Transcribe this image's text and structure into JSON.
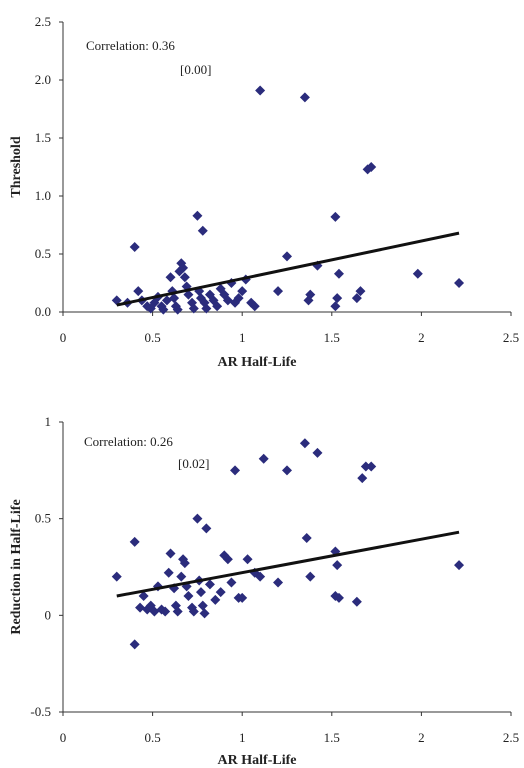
{
  "chart_data": [
    {
      "type": "scatter",
      "title": "",
      "xlabel": "AR Half-Life",
      "ylabel": "Threshold",
      "xlim": [
        0,
        2.5
      ],
      "ylim": [
        0,
        2.5
      ],
      "xticks": [
        "0",
        "0.5",
        "1",
        "1.5",
        "2",
        "2.5"
      ],
      "yticks": [
        "0.0",
        "0.5",
        "1.0",
        "1.5",
        "2.0",
        "2.5"
      ],
      "annotation": {
        "line1": "Correlation: 0.36",
        "line2": "[0.00]"
      },
      "points": [
        [
          0.3,
          0.1
        ],
        [
          0.36,
          0.08
        ],
        [
          0.4,
          0.56
        ],
        [
          0.42,
          0.18
        ],
        [
          0.44,
          0.1
        ],
        [
          0.47,
          0.05
        ],
        [
          0.49,
          0.03
        ],
        [
          0.51,
          0.08
        ],
        [
          0.53,
          0.13
        ],
        [
          0.55,
          0.05
        ],
        [
          0.56,
          0.02
        ],
        [
          0.58,
          0.1
        ],
        [
          0.6,
          0.3
        ],
        [
          0.61,
          0.18
        ],
        [
          0.62,
          0.12
        ],
        [
          0.63,
          0.05
        ],
        [
          0.64,
          0.02
        ],
        [
          0.65,
          0.35
        ],
        [
          0.66,
          0.42
        ],
        [
          0.67,
          0.38
        ],
        [
          0.68,
          0.3
        ],
        [
          0.69,
          0.22
        ],
        [
          0.7,
          0.15
        ],
        [
          0.72,
          0.08
        ],
        [
          0.73,
          0.03
        ],
        [
          0.75,
          0.83
        ],
        [
          0.76,
          0.18
        ],
        [
          0.77,
          0.12
        ],
        [
          0.78,
          0.7
        ],
        [
          0.79,
          0.08
        ],
        [
          0.8,
          0.03
        ],
        [
          0.82,
          0.15
        ],
        [
          0.84,
          0.1
        ],
        [
          0.86,
          0.05
        ],
        [
          0.88,
          0.2
        ],
        [
          0.9,
          0.15
        ],
        [
          0.92,
          0.1
        ],
        [
          0.94,
          0.25
        ],
        [
          0.96,
          0.08
        ],
        [
          0.98,
          0.12
        ],
        [
          1.0,
          0.18
        ],
        [
          1.02,
          0.28
        ],
        [
          1.05,
          0.08
        ],
        [
          1.07,
          0.05
        ],
        [
          1.1,
          1.91
        ],
        [
          1.2,
          0.18
        ],
        [
          1.25,
          0.48
        ],
        [
          1.35,
          1.85
        ],
        [
          1.37,
          0.1
        ],
        [
          1.38,
          0.15
        ],
        [
          1.42,
          0.4
        ],
        [
          1.52,
          0.82
        ],
        [
          1.53,
          0.12
        ],
        [
          1.54,
          0.33
        ],
        [
          1.52,
          0.05
        ],
        [
          1.64,
          0.12
        ],
        [
          1.66,
          0.18
        ],
        [
          1.7,
          1.23
        ],
        [
          1.72,
          1.25
        ],
        [
          1.98,
          0.33
        ],
        [
          2.21,
          0.25
        ]
      ],
      "fit_line": [
        [
          0.3,
          0.06
        ],
        [
          2.21,
          0.68
        ]
      ]
    },
    {
      "type": "scatter",
      "title": "",
      "xlabel": "AR Half-Life",
      "ylabel": "Reduction in Half-Life",
      "xlim": [
        0,
        2.5
      ],
      "ylim": [
        -0.5,
        1
      ],
      "xticks": [
        "0",
        "0.5",
        "1",
        "1.5",
        "2",
        "2.5"
      ],
      "yticks": [
        "-0.5",
        "0",
        "0.5",
        "1"
      ],
      "annotation": {
        "line1": "Correlation: 0.26",
        "line2": "[0.02]"
      },
      "points": [
        [
          0.3,
          0.2
        ],
        [
          0.4,
          0.38
        ],
        [
          0.4,
          -0.15
        ],
        [
          0.43,
          0.04
        ],
        [
          0.45,
          0.1
        ],
        [
          0.47,
          0.03
        ],
        [
          0.49,
          0.05
        ],
        [
          0.51,
          0.02
        ],
        [
          0.53,
          0.15
        ],
        [
          0.55,
          0.03
        ],
        [
          0.57,
          0.02
        ],
        [
          0.59,
          0.22
        ],
        [
          0.6,
          0.32
        ],
        [
          0.62,
          0.14
        ],
        [
          0.63,
          0.05
        ],
        [
          0.64,
          0.02
        ],
        [
          0.66,
          0.2
        ],
        [
          0.67,
          0.29
        ],
        [
          0.68,
          0.27
        ],
        [
          0.69,
          0.15
        ],
        [
          0.7,
          0.1
        ],
        [
          0.72,
          0.04
        ],
        [
          0.73,
          0.02
        ],
        [
          0.75,
          0.5
        ],
        [
          0.76,
          0.18
        ],
        [
          0.77,
          0.12
        ],
        [
          0.78,
          0.05
        ],
        [
          0.79,
          0.01
        ],
        [
          0.8,
          0.45
        ],
        [
          0.82,
          0.16
        ],
        [
          0.85,
          0.08
        ],
        [
          0.88,
          0.12
        ],
        [
          0.9,
          0.31
        ],
        [
          0.92,
          0.29
        ],
        [
          0.94,
          0.17
        ],
        [
          0.96,
          0.75
        ],
        [
          0.98,
          0.09
        ],
        [
          1.0,
          0.09
        ],
        [
          1.03,
          0.29
        ],
        [
          1.07,
          0.22
        ],
        [
          1.1,
          0.2
        ],
        [
          1.12,
          0.81
        ],
        [
          1.2,
          0.17
        ],
        [
          1.25,
          0.75
        ],
        [
          1.35,
          0.89
        ],
        [
          1.36,
          0.4
        ],
        [
          1.38,
          0.2
        ],
        [
          1.42,
          0.84
        ],
        [
          1.52,
          0.33
        ],
        [
          1.53,
          0.26
        ],
        [
          1.52,
          0.1
        ],
        [
          1.54,
          0.09
        ],
        [
          1.64,
          0.07
        ],
        [
          1.67,
          0.71
        ],
        [
          1.69,
          0.77
        ],
        [
          1.72,
          0.77
        ],
        [
          2.21,
          0.26
        ]
      ],
      "fit_line": [
        [
          0.3,
          0.1
        ],
        [
          2.21,
          0.43
        ]
      ]
    }
  ]
}
